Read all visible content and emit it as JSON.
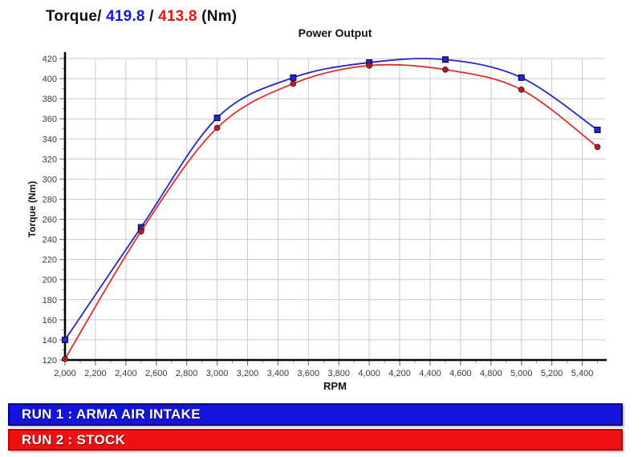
{
  "header": {
    "title_prefix": "Torque/",
    "run1_peak": "419.8",
    "separator": "/",
    "run2_peak": "413.8",
    "title_suffix": "(Nm)",
    "run1_color": "#1515EE",
    "run2_color": "#EE1111"
  },
  "chart_data": {
    "type": "line",
    "title": "Power Output",
    "xlabel": "RPM",
    "ylabel": "Torque (Nm)",
    "xlim": [
      2000,
      5550
    ],
    "ylim": [
      120,
      420
    ],
    "x_tick_step": 200,
    "x_minor_step": 100,
    "y_tick_step": 20,
    "y_minor_step": 10,
    "grid": true,
    "grid_color": "#CBCBCB",
    "axis_color": "#000000",
    "tick_label_color": "#3A3A3A",
    "x": [
      2000,
      2500,
      3000,
      3500,
      4000,
      4500,
      5000,
      5500
    ],
    "series": [
      {
        "name": "RUN 1 : ARMA AIR INTAKE",
        "color": "#2525CD",
        "marker": "square",
        "peak": 419.8,
        "values": [
          140,
          252,
          361,
          401,
          416,
          419,
          401,
          349
        ]
      },
      {
        "name": "RUN 2 : STOCK",
        "color": "#DC2F2F",
        "marker": "circle",
        "peak": 413.8,
        "values": [
          121,
          248,
          351,
          395,
          413,
          409,
          389,
          332
        ]
      }
    ]
  },
  "legend": {
    "run1": {
      "label": "RUN 1 : ARMA AIR INTAKE",
      "bg": "#1414DD",
      "border": "#000080"
    },
    "run2": {
      "label": "RUN 2 : STOCK",
      "bg": "#EE1111",
      "border": "#BB0000"
    }
  }
}
